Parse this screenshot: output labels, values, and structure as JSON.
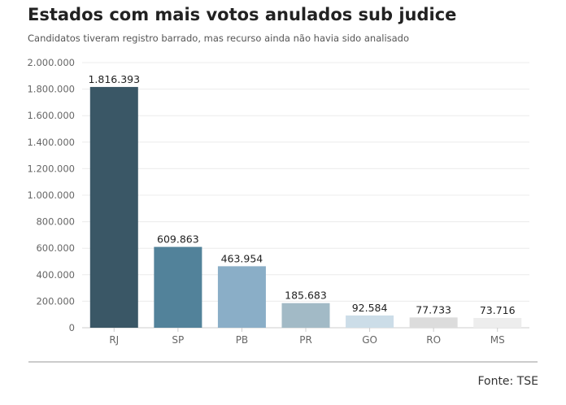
{
  "title": "Estados com mais votos anulados sub judice",
  "subtitle": "Candidatos tiveram registro barrado, mas recurso ainda não havia sido analisado",
  "source": "Fonte: TSE",
  "chart_data": {
    "type": "bar",
    "categories": [
      "RJ",
      "SP",
      "PB",
      "PR",
      "GO",
      "RO",
      "MS"
    ],
    "values": [
      1816393,
      609863,
      463954,
      185683,
      92584,
      77733,
      73716
    ],
    "value_labels": [
      "1.816.393",
      "609.863",
      "463.954",
      "185.683",
      "92.584",
      "77.733",
      "73.716"
    ],
    "colors": [
      "#3a5766",
      "#52829a",
      "#8aaec7",
      "#a2bac6",
      "#ccdde8",
      "#dcdcdc",
      "#ededed"
    ],
    "ylim": [
      0,
      2000000
    ],
    "yticks": [
      0,
      200000,
      400000,
      600000,
      800000,
      1000000,
      1200000,
      1400000,
      1600000,
      1800000,
      2000000
    ],
    "ytick_labels": [
      "0",
      "200.000",
      "400.000",
      "600.000",
      "800.000",
      "1.000.000",
      "1.200.000",
      "1.400.000",
      "1.600.000",
      "1.800.000",
      "2.000.000"
    ],
    "grid": true,
    "title": "Estados com mais votos anulados sub judice",
    "subtitle": "Candidatos tiveram registro barrado, mas recurso ainda não havia sido analisado",
    "xlabel": "",
    "ylabel": ""
  }
}
